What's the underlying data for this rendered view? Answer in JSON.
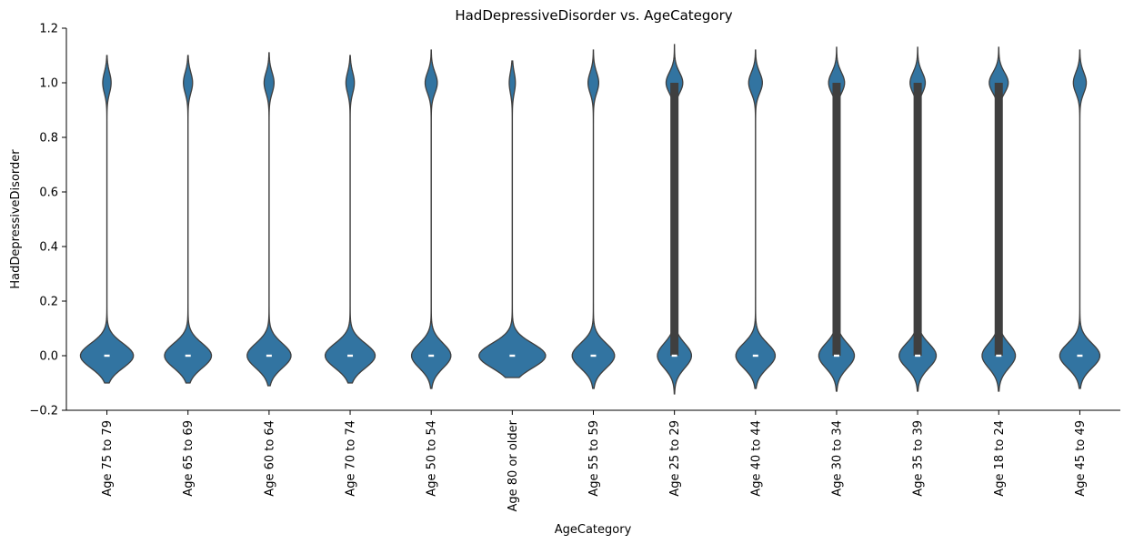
{
  "chart_data": {
    "type": "violin",
    "title": "HadDepressiveDisorder vs. AgeCategory",
    "xlabel": "AgeCategory",
    "ylabel": "HadDepressiveDisorder",
    "ylim": [
      -0.2,
      1.2
    ],
    "yticks": [
      -0.2,
      0.0,
      0.2,
      0.4,
      0.6,
      0.8,
      1.0,
      1.2
    ],
    "ytick_labels": [
      "−0.2",
      "0.0",
      "0.2",
      "0.4",
      "0.6",
      "0.8",
      "1.0",
      "1.2"
    ],
    "color": "#3274a1",
    "edge_color": "#3f3f3f",
    "grid": false,
    "categories": [
      {
        "label": "Age 75 to 79",
        "density_0": 0.7,
        "density_1": 0.11,
        "lower": -0.1,
        "upper": 1.1,
        "median": 0,
        "q1": 0,
        "q3": 0
      },
      {
        "label": "Age 65 to 69",
        "density_0": 0.62,
        "density_1": 0.12,
        "lower": -0.1,
        "upper": 1.1,
        "median": 0,
        "q1": 0,
        "q3": 0
      },
      {
        "label": "Age 60 to 64",
        "density_0": 0.58,
        "density_1": 0.13,
        "lower": -0.11,
        "upper": 1.11,
        "median": 0,
        "q1": 0,
        "q3": 0
      },
      {
        "label": "Age 70 to 74",
        "density_0": 0.66,
        "density_1": 0.11,
        "lower": -0.1,
        "upper": 1.1,
        "median": 0,
        "q1": 0,
        "q3": 0
      },
      {
        "label": "Age 50 to 54",
        "density_0": 0.52,
        "density_1": 0.16,
        "lower": -0.12,
        "upper": 1.12,
        "median": 0,
        "q1": 0,
        "q3": 0
      },
      {
        "label": "Age 80 or older",
        "density_0": 0.88,
        "density_1": 0.08,
        "lower": -0.08,
        "upper": 1.08,
        "median": 0,
        "q1": 0,
        "q3": 0
      },
      {
        "label": "Age 55 to 59",
        "density_0": 0.56,
        "density_1": 0.14,
        "lower": -0.12,
        "upper": 1.12,
        "median": 0,
        "q1": 0,
        "q3": 0
      },
      {
        "label": "Age 25 to 29",
        "density_0": 0.45,
        "density_1": 0.22,
        "lower": -0.14,
        "upper": 1.14,
        "median": 0,
        "q1": 0,
        "q3": 1
      },
      {
        "label": "Age 40 to 44",
        "density_0": 0.52,
        "density_1": 0.18,
        "lower": -0.12,
        "upper": 1.12,
        "median": 0,
        "q1": 0,
        "q3": 0
      },
      {
        "label": "Age 30 to 34",
        "density_0": 0.47,
        "density_1": 0.21,
        "lower": -0.13,
        "upper": 1.13,
        "median": 0,
        "q1": 0,
        "q3": 1
      },
      {
        "label": "Age 35 to 39",
        "density_0": 0.49,
        "density_1": 0.2,
        "lower": -0.13,
        "upper": 1.13,
        "median": 0,
        "q1": 0,
        "q3": 1
      },
      {
        "label": "Age 18 to 24",
        "density_0": 0.44,
        "density_1": 0.25,
        "lower": -0.13,
        "upper": 1.13,
        "median": 0,
        "q1": 0,
        "q3": 1
      },
      {
        "label": "Age 45 to 49",
        "density_0": 0.53,
        "density_1": 0.17,
        "lower": -0.12,
        "upper": 1.12,
        "median": 0,
        "q1": 0,
        "q3": 0
      }
    ]
  }
}
